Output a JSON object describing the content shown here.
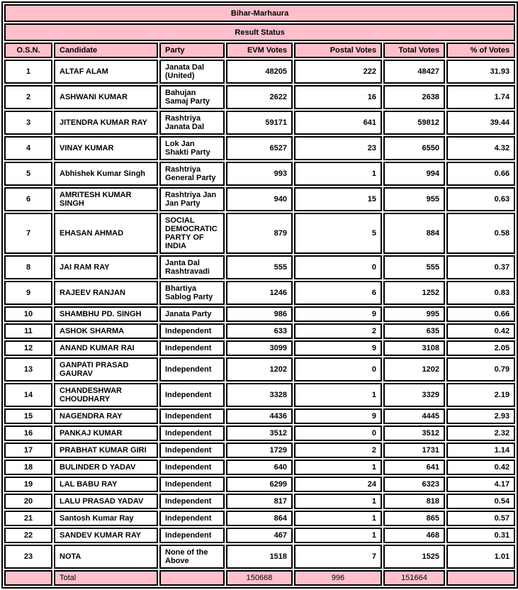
{
  "title": "Bihar-Marhaura",
  "subtitle": "Result Status",
  "colors": {
    "header_bg": "#ffc0cb",
    "row_bg": "#ffffff",
    "border": "#000000",
    "text": "#000000"
  },
  "table": {
    "columns": [
      "O.S.N.",
      "Candidate",
      "Party",
      "EVM Votes",
      "Postal Votes",
      "Total Votes",
      "% of Votes"
    ],
    "rows": [
      {
        "osn": "1",
        "candidate": "ALTAF ALAM",
        "party": "Janata Dal (United)",
        "evm": "48205",
        "postal": "222",
        "total": "48427",
        "pct": "31.93"
      },
      {
        "osn": "2",
        "candidate": "ASHWANI KUMAR",
        "party": "Bahujan Samaj Party",
        "evm": "2622",
        "postal": "16",
        "total": "2638",
        "pct": "1.74"
      },
      {
        "osn": "3",
        "candidate": "JITENDRA KUMAR RAY",
        "party": "Rashtriya Janata Dal",
        "evm": "59171",
        "postal": "641",
        "total": "59812",
        "pct": "39.44"
      },
      {
        "osn": "4",
        "candidate": "VINAY KUMAR",
        "party": "Lok Jan Shakti Party",
        "evm": "6527",
        "postal": "23",
        "total": "6550",
        "pct": "4.32"
      },
      {
        "osn": "5",
        "candidate": "Abhishek Kumar Singh",
        "party": "Rashtriya General Party",
        "evm": "993",
        "postal": "1",
        "total": "994",
        "pct": "0.66"
      },
      {
        "osn": "6",
        "candidate": "AMRITESH KUMAR SINGH",
        "party": "Rashtriya Jan Jan Party",
        "evm": "940",
        "postal": "15",
        "total": "955",
        "pct": "0.63"
      },
      {
        "osn": "7",
        "candidate": "EHASAN AHMAD",
        "party": "SOCIAL DEMOCRATIC PARTY OF INDIA",
        "evm": "879",
        "postal": "5",
        "total": "884",
        "pct": "0.58"
      },
      {
        "osn": "8",
        "candidate": "JAI RAM RAY",
        "party": "Janta Dal Rashtravadi",
        "evm": "555",
        "postal": "0",
        "total": "555",
        "pct": "0.37"
      },
      {
        "osn": "9",
        "candidate": "RAJEEV RANJAN",
        "party": "Bhartiya Sablog Party",
        "evm": "1246",
        "postal": "6",
        "total": "1252",
        "pct": "0.83"
      },
      {
        "osn": "10",
        "candidate": "SHAMBHU PD. SINGH",
        "party": "Janata Party",
        "evm": "986",
        "postal": "9",
        "total": "995",
        "pct": "0.66"
      },
      {
        "osn": "11",
        "candidate": "ASHOK SHARMA",
        "party": "Independent",
        "evm": "633",
        "postal": "2",
        "total": "635",
        "pct": "0.42"
      },
      {
        "osn": "12",
        "candidate": "ANAND KUMAR RAI",
        "party": "Independent",
        "evm": "3099",
        "postal": "9",
        "total": "3108",
        "pct": "2.05"
      },
      {
        "osn": "13",
        "candidate": "GANPATI PRASAD GAURAV",
        "party": "Independent",
        "evm": "1202",
        "postal": "0",
        "total": "1202",
        "pct": "0.79"
      },
      {
        "osn": "14",
        "candidate": "CHANDESHWAR CHOUDHARY",
        "party": "Independent",
        "evm": "3328",
        "postal": "1",
        "total": "3329",
        "pct": "2.19"
      },
      {
        "osn": "15",
        "candidate": "NAGENDRA RAY",
        "party": "Independent",
        "evm": "4436",
        "postal": "9",
        "total": "4445",
        "pct": "2.93"
      },
      {
        "osn": "16",
        "candidate": "PANKAJ KUMAR",
        "party": "Independent",
        "evm": "3512",
        "postal": "0",
        "total": "3512",
        "pct": "2.32"
      },
      {
        "osn": "17",
        "candidate": "PRABHAT KUMAR GIRI",
        "party": "Independent",
        "evm": "1729",
        "postal": "2",
        "total": "1731",
        "pct": "1.14"
      },
      {
        "osn": "18",
        "candidate": "BULINDER D YADAV",
        "party": "Independent",
        "evm": "640",
        "postal": "1",
        "total": "641",
        "pct": "0.42"
      },
      {
        "osn": "19",
        "candidate": "LAL BABU RAY",
        "party": "Independent",
        "evm": "6299",
        "postal": "24",
        "total": "6323",
        "pct": "4.17"
      },
      {
        "osn": "20",
        "candidate": "LALU PRASAD YADAV",
        "party": "Independent",
        "evm": "817",
        "postal": "1",
        "total": "818",
        "pct": "0.54"
      },
      {
        "osn": "21",
        "candidate": "Santosh Kumar Ray",
        "party": "Independent",
        "evm": "864",
        "postal": "1",
        "total": "865",
        "pct": "0.57"
      },
      {
        "osn": "22",
        "candidate": "SANDEV KUMAR RAY",
        "party": "Independent",
        "evm": "467",
        "postal": "1",
        "total": "468",
        "pct": "0.31"
      },
      {
        "osn": "23",
        "candidate": "NOTA",
        "party": "None of the Above",
        "evm": "1518",
        "postal": "7",
        "total": "1525",
        "pct": "1.01"
      }
    ],
    "total": {
      "label": "Total",
      "evm": "150668",
      "postal": "996",
      "total": "151664"
    }
  }
}
